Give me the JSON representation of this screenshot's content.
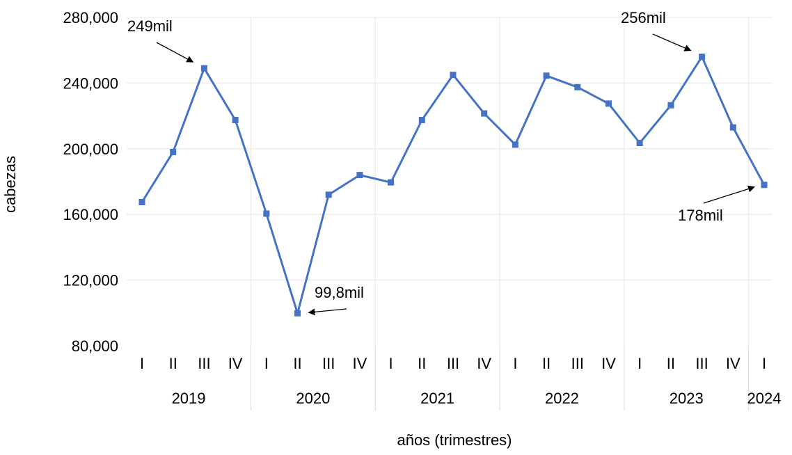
{
  "chart_data": {
    "type": "line",
    "title": "",
    "xlabel": "años (trimestres)",
    "ylabel": "cabezas",
    "ylim": [
      80000,
      280000
    ],
    "yticks": [
      80000,
      120000,
      160000,
      200000,
      240000,
      280000
    ],
    "ytick_labels": [
      "80,000",
      "120,000",
      "160,000",
      "200,000",
      "240,000",
      "280,000"
    ],
    "grid": true,
    "legend": "none",
    "line_color": "#4472c4",
    "years": [
      {
        "label": "2019",
        "quarters": [
          "I",
          "II",
          "III",
          "IV"
        ]
      },
      {
        "label": "2020",
        "quarters": [
          "I",
          "II",
          "III",
          "IV"
        ]
      },
      {
        "label": "2021",
        "quarters": [
          "I",
          "II",
          "III",
          "IV"
        ]
      },
      {
        "label": "2022",
        "quarters": [
          "I",
          "II",
          "III",
          "IV"
        ]
      },
      {
        "label": "2023",
        "quarters": [
          "I",
          "II",
          "III",
          "IV"
        ]
      },
      {
        "label": "2024",
        "quarters": [
          "I"
        ]
      }
    ],
    "values": [
      167500,
      198000,
      249000,
      217500,
      160500,
      99800,
      172000,
      184000,
      179500,
      217500,
      245000,
      221500,
      202500,
      244500,
      237500,
      227500,
      203500,
      226500,
      256000,
      213000,
      178000
    ],
    "annotations": [
      {
        "text": "249mil",
        "point_index": 2
      },
      {
        "text": "99,8mil",
        "point_index": 5
      },
      {
        "text": "256mil",
        "point_index": 18
      },
      {
        "text": "178mil",
        "point_index": 20
      }
    ]
  }
}
